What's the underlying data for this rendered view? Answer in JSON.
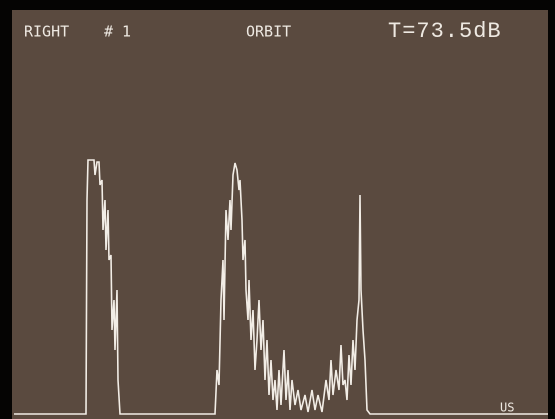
{
  "header": {
    "side": "RIGHT",
    "number": "# 1",
    "mode": "ORBIT",
    "gain": "T=73.5dB"
  },
  "footer": {
    "unit": "US"
  }
}
